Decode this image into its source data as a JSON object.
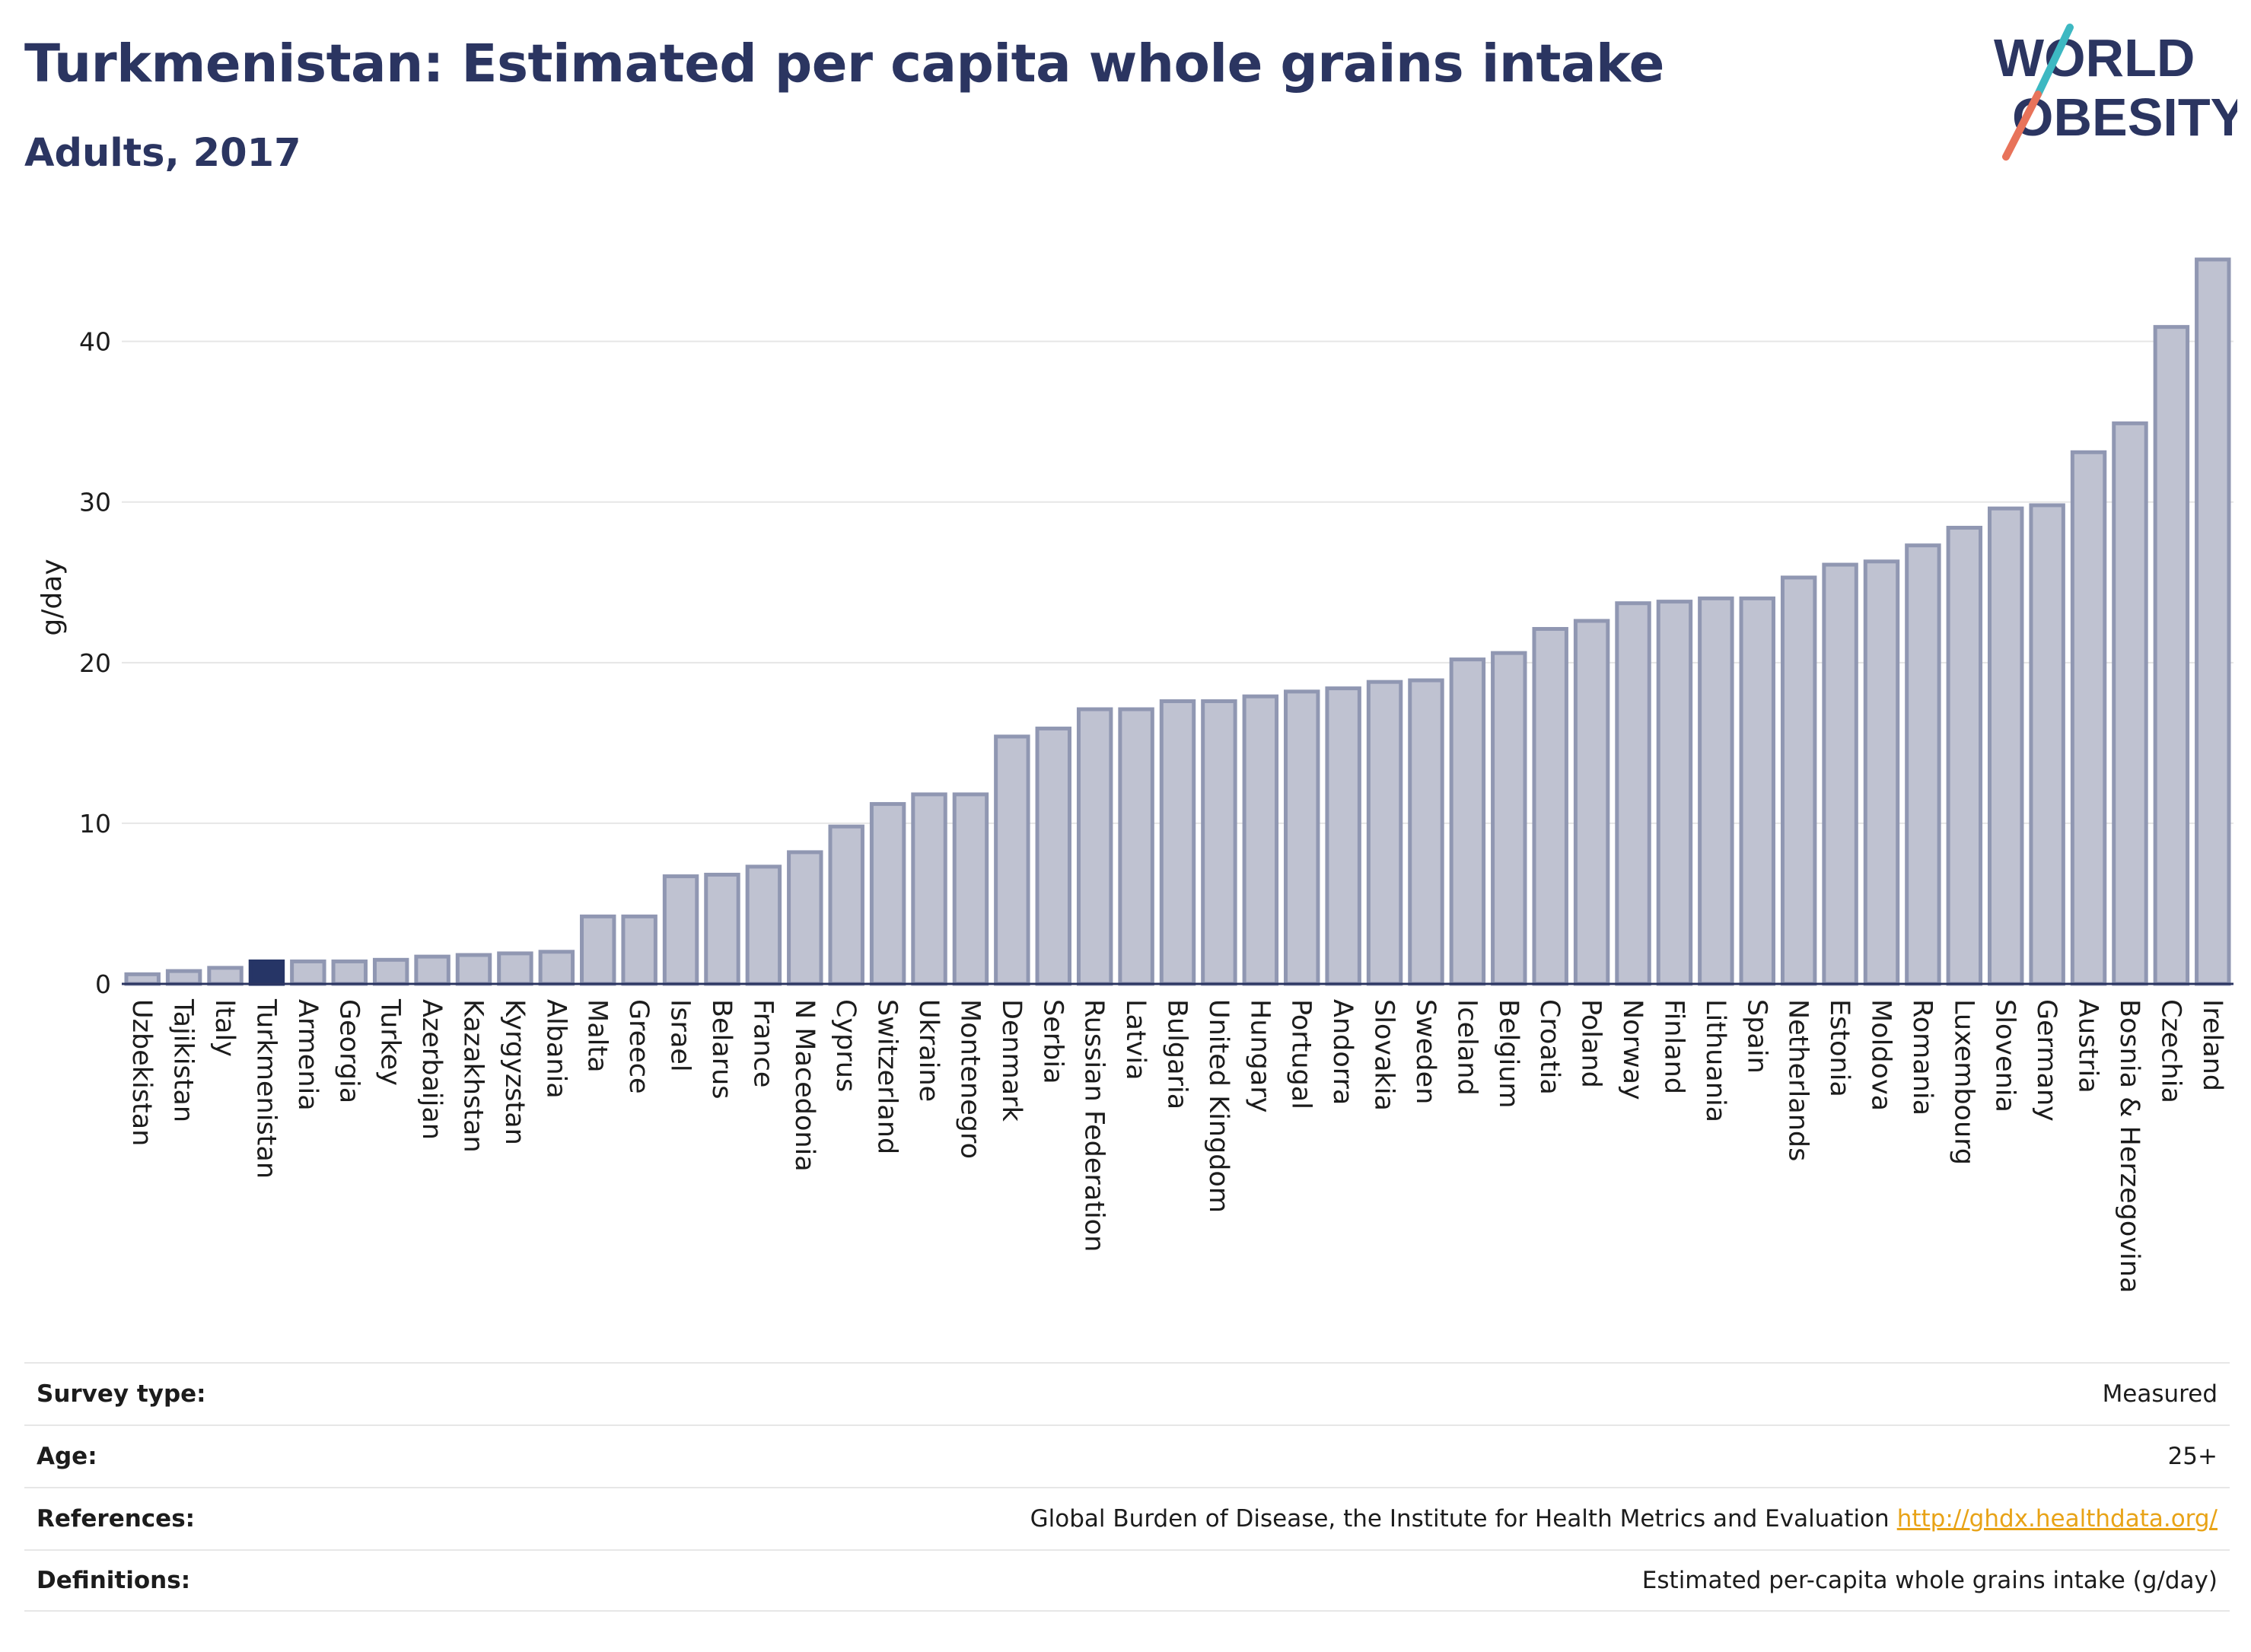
{
  "header": {
    "title": "Turkmenistan: Estimated per capita whole grains intake",
    "subtitle": "Adults, 2017"
  },
  "logo": {
    "line1": "WORLD",
    "line2": "OBESITY",
    "colors": {
      "text": "#2b3561",
      "slash_teal": "#3db8c2",
      "slash_coral": "#e8735a"
    }
  },
  "colors": {
    "bar_fill": "#bfc2d1",
    "bar_stroke": "#9097b2",
    "highlight_fill": "#263566",
    "grid": "#e6e6e6",
    "baseline": "#2b3561"
  },
  "chart_data": {
    "type": "bar",
    "ylabel": "g/day",
    "ylim": [
      0,
      46
    ],
    "yticks": [
      0,
      10,
      20,
      30,
      40
    ],
    "grid": true,
    "highlight": "Turkmenistan",
    "categories": [
      "Uzbekistan",
      "Tajikistan",
      "Italy",
      "Turkmenistan",
      "Armenia",
      "Georgia",
      "Turkey",
      "Azerbaijan",
      "Kazakhstan",
      "Kyrgyzstan",
      "Albania",
      "Malta",
      "Greece",
      "Israel",
      "Belarus",
      "France",
      "N Macedonia",
      "Cyprus",
      "Switzerland",
      "Ukraine",
      "Montenegro",
      "Denmark",
      "Serbia",
      "Russian Federation",
      "Latvia",
      "Bulgaria",
      "United Kingdom",
      "Hungary",
      "Portugal",
      "Andorra",
      "Slovakia",
      "Sweden",
      "Iceland",
      "Belgium",
      "Croatia",
      "Poland",
      "Norway",
      "Finland",
      "Lithuania",
      "Spain",
      "Netherlands",
      "Estonia",
      "Moldova",
      "Romania",
      "Luxembourg",
      "Slovenia",
      "Germany",
      "Austria",
      "Bosnia & Herzegovina",
      "Czechia",
      "Ireland"
    ],
    "values": [
      0.6,
      0.8,
      1.0,
      1.4,
      1.4,
      1.4,
      1.5,
      1.7,
      1.8,
      1.9,
      2.0,
      4.2,
      4.2,
      6.7,
      6.8,
      7.3,
      8.2,
      9.8,
      11.2,
      11.8,
      11.8,
      15.4,
      15.9,
      17.1,
      17.1,
      17.6,
      17.6,
      17.9,
      18.2,
      18.4,
      18.8,
      18.9,
      20.2,
      20.6,
      22.1,
      22.6,
      23.7,
      23.8,
      24.0,
      24.0,
      25.3,
      26.1,
      26.3,
      27.3,
      28.4,
      29.6,
      29.8,
      33.1,
      34.9,
      40.9,
      45.1
    ]
  },
  "info": [
    {
      "label": "Survey type:",
      "value": "Measured"
    },
    {
      "label": "Age:",
      "value": "25+"
    },
    {
      "label": "References:",
      "value": "Global Burden of Disease, the Institute for Health Metrics and Evaluation",
      "link": "http://ghdx.healthdata.org/"
    },
    {
      "label": "Definitions:",
      "value": "Estimated per-capita whole grains intake (g/day)"
    }
  ]
}
